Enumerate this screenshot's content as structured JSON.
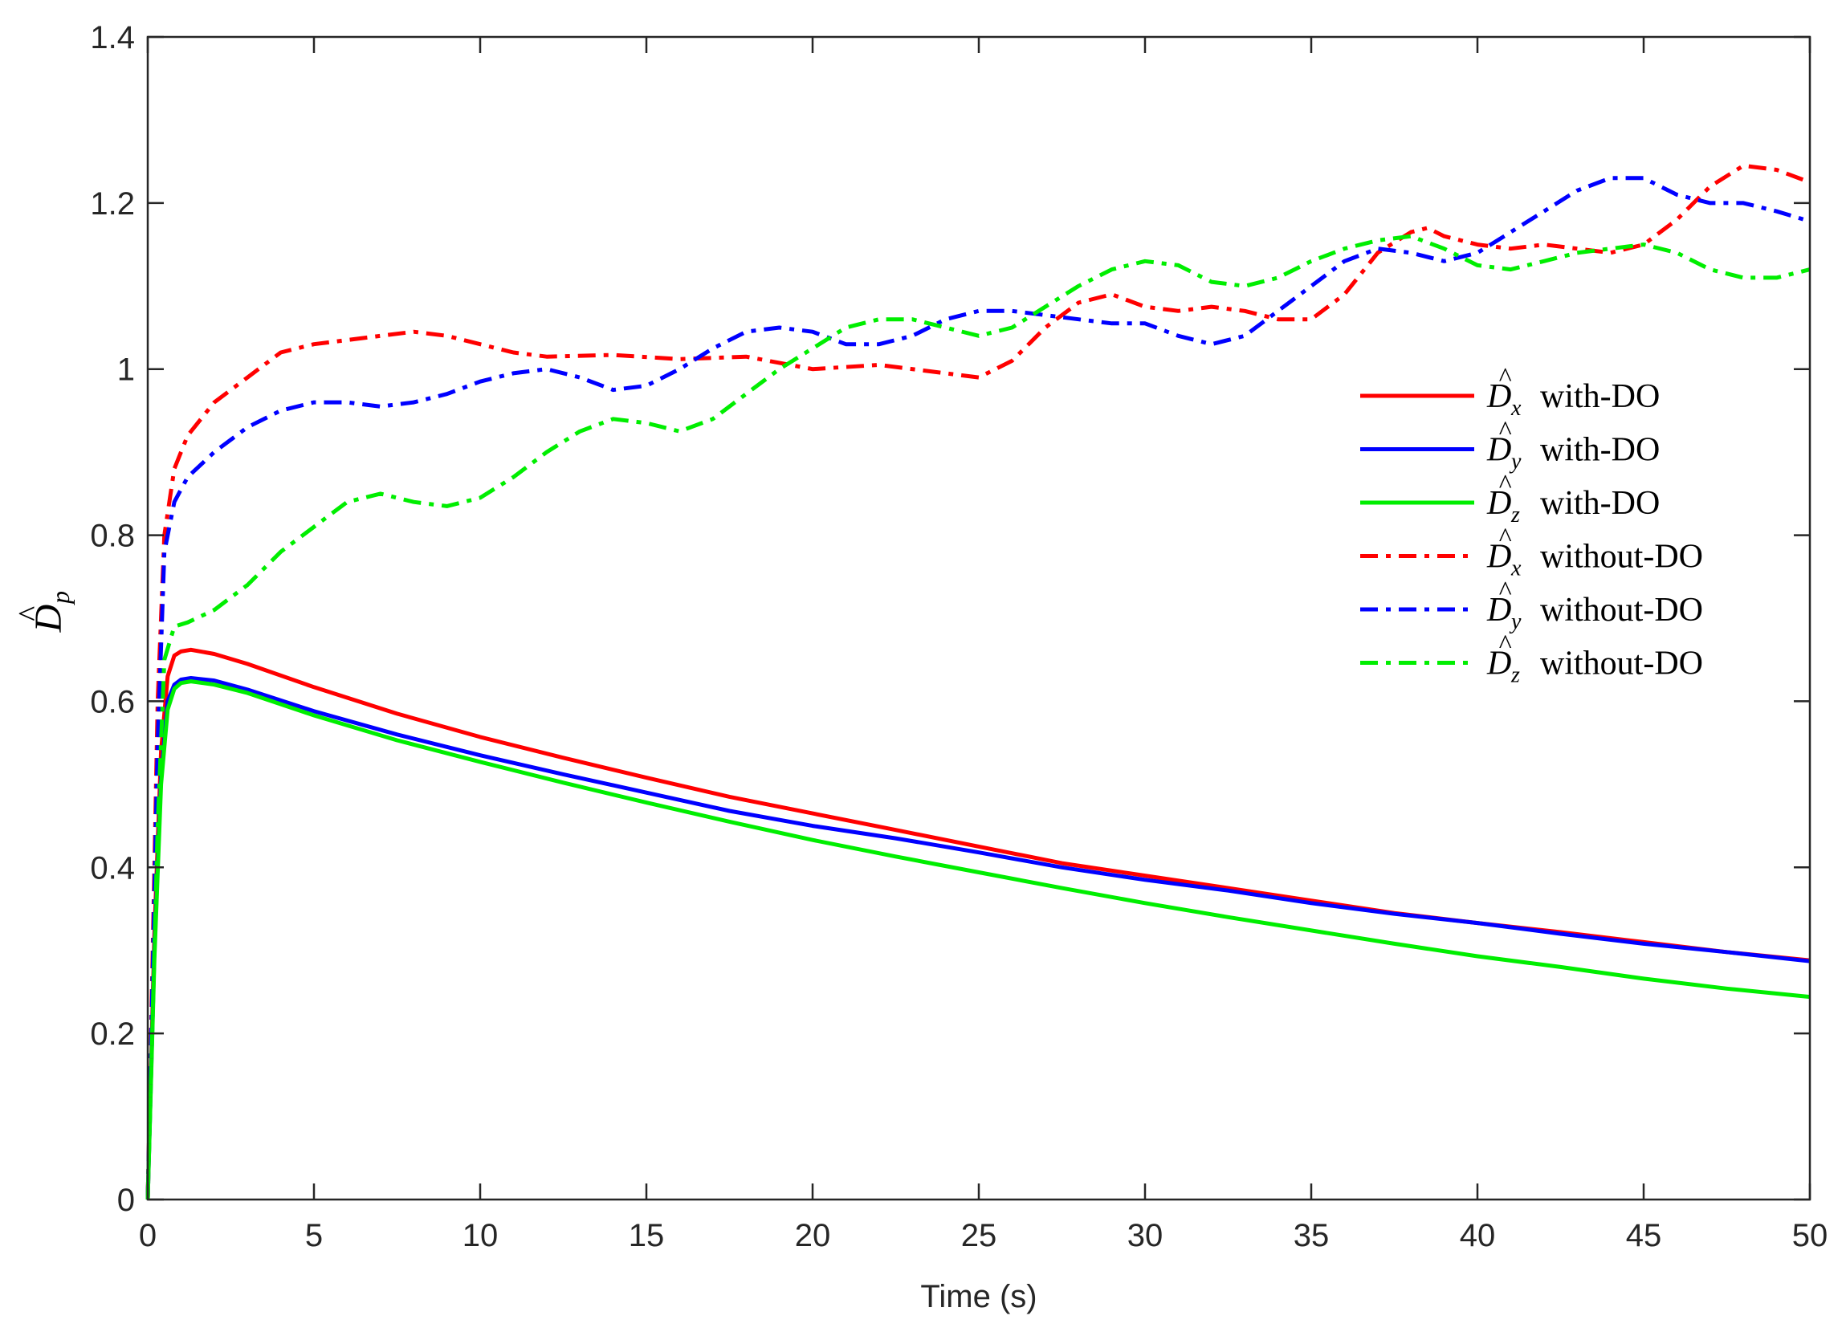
{
  "chart_data": {
    "type": "line",
    "xlabel": "Time (s)",
    "ylabel": {
      "symbol": "D",
      "hat": "^",
      "subscript": "p"
    },
    "xlim": [
      0,
      50
    ],
    "ylim": [
      0,
      1.4
    ],
    "xticks": [
      0,
      5,
      10,
      15,
      20,
      25,
      30,
      35,
      40,
      45,
      50
    ],
    "yticks": [
      0,
      0.2,
      0.4,
      0.6,
      0.8,
      1,
      1.2,
      1.4
    ],
    "xtick_labels": [
      "0",
      "5",
      "10",
      "15",
      "20",
      "25",
      "30",
      "35",
      "40",
      "45",
      "50"
    ],
    "ytick_labels": [
      "0",
      "0.2",
      "0.4",
      "0.6",
      "0.8",
      "1",
      "1.2",
      "1.4"
    ],
    "grid": false,
    "legend_position": "right",
    "series": [
      {
        "symbol": "D",
        "subscript": "x",
        "text": "with-DO",
        "color": "#ff0000",
        "style": "solid",
        "x": [
          0,
          0.2,
          0.4,
          0.6,
          0.8,
          1.0,
          1.3,
          2,
          3,
          5,
          7.5,
          10,
          12.5,
          15,
          17.5,
          20,
          22.5,
          25,
          27.5,
          30,
          32.5,
          35,
          37.5,
          40,
          42.5,
          45,
          47.5,
          50
        ],
        "y": [
          0,
          0.32,
          0.54,
          0.63,
          0.655,
          0.66,
          0.662,
          0.657,
          0.645,
          0.617,
          0.585,
          0.557,
          0.532,
          0.508,
          0.485,
          0.465,
          0.445,
          0.425,
          0.405,
          0.39,
          0.375,
          0.36,
          0.345,
          0.333,
          0.322,
          0.31,
          0.298,
          0.288
        ]
      },
      {
        "symbol": "D",
        "subscript": "y",
        "text": "with-DO",
        "color": "#0000ff",
        "style": "solid",
        "x": [
          0,
          0.2,
          0.4,
          0.6,
          0.8,
          1.0,
          1.3,
          2,
          3,
          5,
          7.5,
          10,
          12.5,
          15,
          17.5,
          20,
          22.5,
          25,
          27.5,
          30,
          32.5,
          35,
          37.5,
          40,
          42.5,
          45,
          47.5,
          50
        ],
        "y": [
          0,
          0.3,
          0.51,
          0.6,
          0.62,
          0.626,
          0.628,
          0.625,
          0.614,
          0.588,
          0.56,
          0.535,
          0.512,
          0.49,
          0.468,
          0.45,
          0.435,
          0.418,
          0.4,
          0.385,
          0.372,
          0.357,
          0.344,
          0.333,
          0.32,
          0.308,
          0.298,
          0.287
        ]
      },
      {
        "symbol": "D",
        "subscript": "z",
        "text": "with-DO",
        "color": "#00ee00",
        "style": "solid",
        "x": [
          0,
          0.2,
          0.4,
          0.6,
          0.8,
          1.0,
          1.3,
          2,
          3,
          5,
          7.5,
          10,
          12.5,
          15,
          17.5,
          20,
          22.5,
          25,
          27.5,
          30,
          32.5,
          35,
          37.5,
          40,
          42.5,
          45,
          47.5,
          50
        ],
        "y": [
          0,
          0.29,
          0.5,
          0.59,
          0.615,
          0.622,
          0.624,
          0.62,
          0.61,
          0.583,
          0.553,
          0.527,
          0.502,
          0.478,
          0.455,
          0.433,
          0.413,
          0.394,
          0.375,
          0.357,
          0.34,
          0.324,
          0.308,
          0.293,
          0.28,
          0.266,
          0.254,
          0.244
        ]
      },
      {
        "symbol": "D",
        "subscript": "x",
        "text": "without-DO",
        "color": "#ff0000",
        "style": "dashdot",
        "x": [
          0,
          0.3,
          0.5,
          0.8,
          1.2,
          2,
          3,
          4,
          5,
          6,
          7,
          8,
          9,
          10,
          11,
          12,
          14,
          16,
          18,
          20,
          22,
          24,
          25,
          26,
          27,
          28,
          29,
          30,
          31,
          32,
          33,
          34,
          35,
          36,
          37,
          38,
          38.5,
          39,
          40,
          41,
          42,
          43,
          44,
          45,
          46,
          47,
          48,
          49,
          50
        ],
        "y": [
          0,
          0.6,
          0.8,
          0.88,
          0.92,
          0.96,
          0.99,
          1.02,
          1.03,
          1.035,
          1.04,
          1.045,
          1.04,
          1.03,
          1.02,
          1.015,
          1.017,
          1.012,
          1.015,
          1.0,
          1.005,
          0.995,
          0.99,
          1.01,
          1.05,
          1.08,
          1.09,
          1.075,
          1.07,
          1.075,
          1.07,
          1.06,
          1.06,
          1.09,
          1.14,
          1.165,
          1.17,
          1.16,
          1.15,
          1.145,
          1.15,
          1.145,
          1.14,
          1.15,
          1.18,
          1.22,
          1.245,
          1.24,
          1.225
        ]
      },
      {
        "symbol": "D",
        "subscript": "y",
        "text": "without-DO",
        "color": "#0000ff",
        "style": "dashdot",
        "x": [
          0,
          0.3,
          0.5,
          0.8,
          1.2,
          2,
          3,
          4,
          5,
          6,
          7,
          8,
          9,
          10,
          11,
          12,
          13,
          14,
          15,
          16,
          17,
          18,
          19,
          20,
          21,
          22,
          23,
          24,
          25,
          26,
          27,
          28,
          29,
          30,
          31,
          32,
          33,
          34,
          35,
          36,
          37,
          38,
          39,
          40,
          41,
          42,
          43,
          44,
          45,
          46,
          47,
          48,
          49,
          50
        ],
        "y": [
          0,
          0.55,
          0.78,
          0.84,
          0.87,
          0.9,
          0.93,
          0.95,
          0.96,
          0.96,
          0.955,
          0.96,
          0.97,
          0.985,
          0.995,
          1.0,
          0.99,
          0.975,
          0.98,
          1.0,
          1.025,
          1.045,
          1.05,
          1.045,
          1.03,
          1.03,
          1.04,
          1.06,
          1.07,
          1.07,
          1.065,
          1.06,
          1.055,
          1.055,
          1.04,
          1.03,
          1.04,
          1.07,
          1.1,
          1.13,
          1.145,
          1.14,
          1.13,
          1.14,
          1.165,
          1.19,
          1.215,
          1.23,
          1.23,
          1.21,
          1.2,
          1.2,
          1.19,
          1.178
        ]
      },
      {
        "symbol": "D",
        "subscript": "z",
        "text": "without-DO",
        "color": "#00ee00",
        "style": "dashdot",
        "x": [
          0,
          0.3,
          0.5,
          0.8,
          1.2,
          2,
          3,
          4,
          5,
          6,
          7,
          8,
          9,
          10,
          11,
          12,
          13,
          14,
          15,
          16,
          17,
          18,
          19,
          20,
          21,
          22,
          23,
          24,
          25,
          26,
          27,
          28,
          29,
          30,
          31,
          32,
          33,
          34,
          35,
          36,
          37,
          38,
          39,
          40,
          41,
          42,
          43,
          44,
          45,
          46,
          47,
          48,
          49,
          50
        ],
        "y": [
          0,
          0.45,
          0.65,
          0.69,
          0.695,
          0.71,
          0.74,
          0.78,
          0.81,
          0.84,
          0.85,
          0.84,
          0.835,
          0.845,
          0.87,
          0.9,
          0.925,
          0.94,
          0.935,
          0.925,
          0.94,
          0.97,
          1.0,
          1.025,
          1.05,
          1.06,
          1.06,
          1.05,
          1.04,
          1.05,
          1.075,
          1.1,
          1.12,
          1.13,
          1.125,
          1.105,
          1.1,
          1.11,
          1.13,
          1.145,
          1.155,
          1.16,
          1.145,
          1.125,
          1.12,
          1.13,
          1.14,
          1.145,
          1.15,
          1.14,
          1.12,
          1.11,
          1.11,
          1.12
        ]
      }
    ]
  }
}
